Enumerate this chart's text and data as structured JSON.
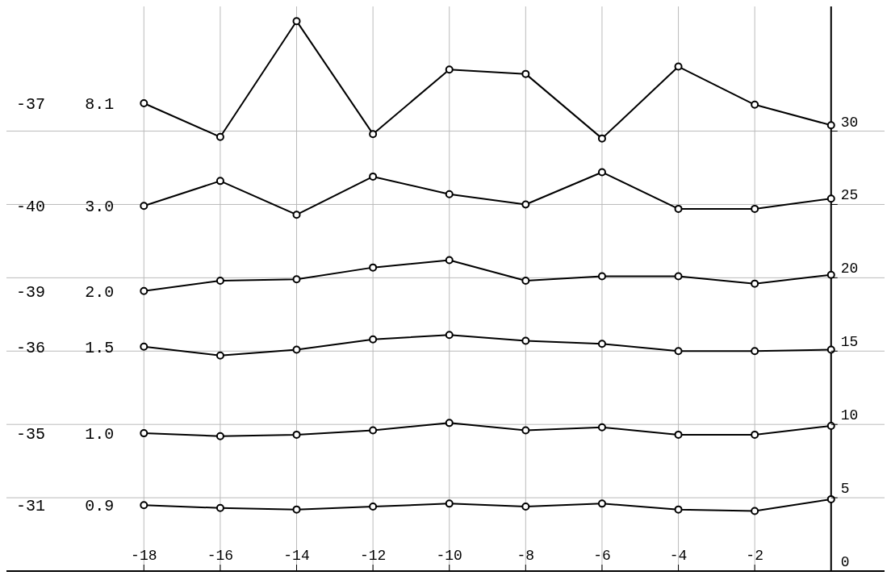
{
  "chart_data": {
    "type": "line",
    "x": [
      -18,
      -16,
      -14,
      -12,
      -10,
      -8,
      -6,
      -4,
      -2,
      0
    ],
    "series": [
      {
        "name": "8.1",
        "color": "#000000",
        "values": [
          31.9,
          29.6,
          37.5,
          29.8,
          34.2,
          33.9,
          29.5,
          34.4,
          31.8,
          30.4
        ]
      },
      {
        "name": "3.0",
        "color": "#000000",
        "values": [
          24.9,
          26.6,
          24.3,
          26.9,
          25.7,
          25.0,
          27.2,
          24.7,
          24.7,
          25.4
        ]
      },
      {
        "name": "2.0",
        "color": "#000000",
        "values": [
          19.1,
          19.8,
          19.9,
          20.7,
          21.2,
          19.8,
          20.1,
          20.1,
          19.6,
          20.2
        ]
      },
      {
        "name": "1.5",
        "color": "#000000",
        "values": [
          15.3,
          14.7,
          15.1,
          15.8,
          16.1,
          15.7,
          15.5,
          15.0,
          15.0,
          15.1
        ]
      },
      {
        "name": "1.0",
        "color": "#000000",
        "values": [
          9.4,
          9.2,
          9.3,
          9.6,
          10.1,
          9.6,
          9.8,
          9.3,
          9.3,
          9.9
        ]
      },
      {
        "name": "0.9",
        "color": "#000000",
        "values": [
          4.5,
          4.3,
          4.2,
          4.4,
          4.6,
          4.4,
          4.6,
          4.2,
          4.1,
          4.9
        ]
      }
    ],
    "annotations": [
      "-37",
      "-40",
      "-39",
      "-36",
      "-35",
      "-31"
    ],
    "xlim": [
      -21.6,
      1.4
    ],
    "ylim": [
      0,
      38.5
    ],
    "xticks": [
      -18,
      -16,
      -14,
      -12,
      -10,
      -8,
      -6,
      -4,
      -2
    ],
    "yticks": [
      0,
      5,
      10,
      15,
      20,
      25,
      30
    ],
    "grid": true,
    "marker": "circle",
    "line_style": "solid"
  }
}
